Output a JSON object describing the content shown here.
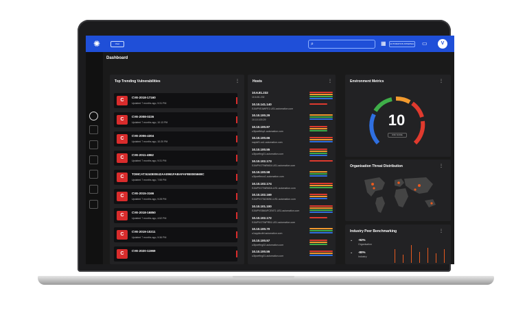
{
  "header": {
    "left_pill": "View",
    "selector_label": "AUTOMATION INTERNAL",
    "avatar_initials": "V"
  },
  "page": {
    "title": "Dashboard"
  },
  "vulnerabilities": {
    "title": "Top Trending Vulnerabilities",
    "items": [
      {
        "badge": "C",
        "name": "CVE-2018-17160",
        "updated": "Updated 7 months ago, 9:31 PM"
      },
      {
        "badge": "C",
        "name": "CVE-2008-0226",
        "updated": "Updated 7 months ago, 10:13 PM"
      },
      {
        "badge": "C",
        "name": "CVE-2006-4304",
        "updated": "Updated 7 months ago, 10:20 PM"
      },
      {
        "badge": "C",
        "name": "CVE-2011-4862",
        "updated": "Updated 7 months ago, 9:31 PM"
      },
      {
        "badge": "C",
        "name": "TOMCAT:5240E0E42AA0961FABAFAFBE0E5669C",
        "updated": "Updated 7 months ago, 7:55 PM"
      },
      {
        "badge": "C",
        "name": "CVE-2015-3166",
        "updated": "Updated 7 months ago, 9:28 PM"
      },
      {
        "badge": "C",
        "name": "CVE-2018-16850",
        "updated": "Updated 7 months ago, 4:52 PM"
      },
      {
        "badge": "C",
        "name": "CVE-2019-10211",
        "updated": "Updated 7 months ago, 9:36 PM"
      },
      {
        "badge": "C",
        "name": "CVE-2020-11969",
        "updated": ""
      }
    ]
  },
  "hosts": {
    "title": "Hosts",
    "items": [
      {
        "ip": "10.6.81.232",
        "sub": "10.6.81.232"
      },
      {
        "ip": "10.10.141.140",
        "sub": "S1WPVEAWFE1.US1.automation.com"
      },
      {
        "ip": "10.10.100.29",
        "sub": "10.10.100.29"
      },
      {
        "ip": "10.10.100.97",
        "sub": "u3lpvefbfcp1.automation.com"
      },
      {
        "ip": "10.10.100.66",
        "sub": "napicfl1.us1.automation.com"
      },
      {
        "ip": "10.10.100.55",
        "sub": "u3lpvefhrg01.automation.com"
      },
      {
        "ip": "10.10.102.173",
        "sub": "S1WPVOTWBM04.US1.automation.com"
      },
      {
        "ip": "10.10.100.58",
        "sub": "u3lpvefbnco1.automation.com"
      },
      {
        "ip": "10.10.102.174",
        "sub": "S1WPVOTWBM0A.US1.automation.com"
      },
      {
        "ip": "10.10.102.169",
        "sub": "S1WPVOTADMIN1.US1.automation.com"
      },
      {
        "ip": "10.10.101.100",
        "sub": "S1WPVS5MAPCENT1.US1.automation.com"
      },
      {
        "ip": "10.10.102.172",
        "sub": "S1WPVOTWPRB1.US1.automation.com"
      },
      {
        "ip": "10.10.100.70",
        "sub": "u1appliccltrl.automation.com"
      },
      {
        "ip": "10.10.100.57",
        "sub": "u3lpvefhrg02.automation.com"
      },
      {
        "ip": "10.10.100.55",
        "sub": "u3lpvefhrg01.automation.com"
      }
    ]
  },
  "env_metrics": {
    "title": "Environment Metrics",
    "score": "10",
    "score_label": "RISK SCORE"
  },
  "threat_map": {
    "title": "Organisation Threat Distribution"
  },
  "benchmark": {
    "title": "Industry Peer Benchmarking",
    "rows": [
      {
        "value": "-92%",
        "label": "Organisation"
      },
      {
        "value": "-80%",
        "label": "Industry"
      }
    ]
  },
  "colors": {
    "brand_blue": "#1f4fd8",
    "critical_red": "#d92c2c",
    "gauge_red": "#e03a2e",
    "gauge_orange": "#f29a2e",
    "gauge_green": "#3fae49",
    "gauge_blue": "#2f6fe0"
  }
}
